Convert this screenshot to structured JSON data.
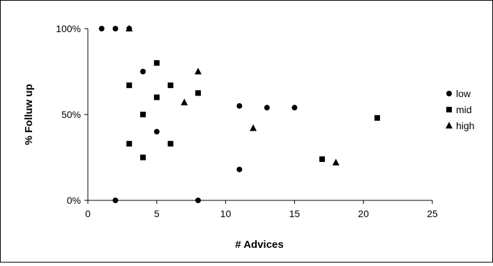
{
  "chart_data": {
    "type": "scatter",
    "title": "",
    "xlabel": "# Advices",
    "ylabel": "% Folluw up",
    "xlim": [
      0,
      25
    ],
    "ylim": [
      0,
      1
    ],
    "xticks": [
      "0",
      "5",
      "10",
      "15",
      "20",
      "25"
    ],
    "yticks": [
      "0%",
      "50%",
      "100%"
    ],
    "grid": false,
    "legend_position": "right",
    "series": [
      {
        "name": "low",
        "marker": "circle",
        "color": "#000000",
        "points": [
          {
            "x": 1,
            "y": 1.0
          },
          {
            "x": 2,
            "y": 1.0
          },
          {
            "x": 3,
            "y": 1.0
          },
          {
            "x": 4,
            "y": 0.75
          },
          {
            "x": 5,
            "y": 0.4
          },
          {
            "x": 2,
            "y": 0.0
          },
          {
            "x": 8,
            "y": 0.0
          },
          {
            "x": 11,
            "y": 0.55
          },
          {
            "x": 11,
            "y": 0.18
          },
          {
            "x": 13,
            "y": 0.54
          },
          {
            "x": 15,
            "y": 0.54
          }
        ]
      },
      {
        "name": "mid",
        "marker": "square",
        "color": "#000000",
        "points": [
          {
            "x": 3,
            "y": 0.67
          },
          {
            "x": 3,
            "y": 0.33
          },
          {
            "x": 4,
            "y": 0.5
          },
          {
            "x": 4,
            "y": 0.25
          },
          {
            "x": 5,
            "y": 0.8
          },
          {
            "x": 5,
            "y": 0.6
          },
          {
            "x": 6,
            "y": 0.67
          },
          {
            "x": 6,
            "y": 0.33
          },
          {
            "x": 8,
            "y": 0.625
          },
          {
            "x": 17,
            "y": 0.24
          },
          {
            "x": 21,
            "y": 0.48
          }
        ]
      },
      {
        "name": "high",
        "marker": "triangle",
        "color": "#000000",
        "points": [
          {
            "x": 3,
            "y": 1.0
          },
          {
            "x": 7,
            "y": 0.57
          },
          {
            "x": 8,
            "y": 0.75
          },
          {
            "x": 12,
            "y": 0.42
          },
          {
            "x": 18,
            "y": 0.22
          }
        ]
      }
    ]
  }
}
